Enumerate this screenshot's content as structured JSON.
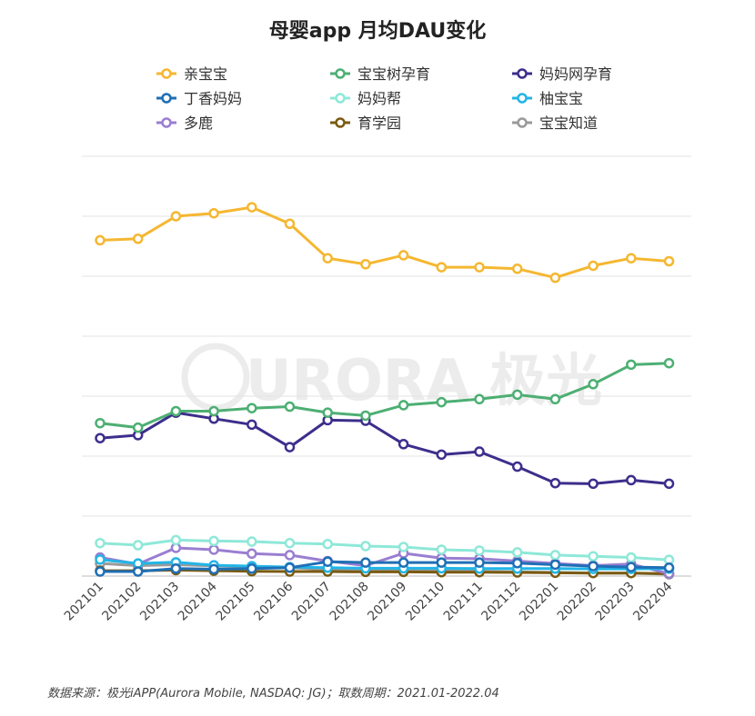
{
  "chart_data": {
    "type": "line",
    "title": "母婴app 月均DAU变化",
    "x": [
      "202101",
      "202102",
      "202103",
      "202104",
      "202105",
      "202106",
      "202107",
      "202108",
      "202109",
      "202110",
      "202111",
      "202112",
      "202201",
      "202202",
      "202203",
      "202204"
    ],
    "ylim": [
      0,
      1.4
    ],
    "grid": true,
    "legend": "top",
    "watermark": "URORA 极光",
    "series": [
      {
        "name": "亲宝宝",
        "color": "#F5B731",
        "values": [
          1.12,
          1.125,
          1.2,
          1.21,
          1.23,
          1.175,
          1.06,
          1.04,
          1.07,
          1.03,
          1.03,
          1.025,
          0.995,
          1.035,
          1.06,
          1.05
        ]
      },
      {
        "name": "宝宝树孕育",
        "color": "#4DAF73",
        "values": [
          0.51,
          0.495,
          0.55,
          0.55,
          0.56,
          0.565,
          0.545,
          0.535,
          0.57,
          0.58,
          0.59,
          0.605,
          0.59,
          0.64,
          0.705,
          0.71
        ]
      },
      {
        "name": "妈妈网孕育",
        "color": "#3C2E8C",
        "values": [
          0.46,
          0.47,
          0.545,
          0.525,
          0.505,
          0.43,
          0.52,
          0.518,
          0.44,
          0.405,
          0.415,
          0.365,
          0.31,
          0.308,
          0.32,
          0.308
        ]
      },
      {
        "name": "丁香妈妈",
        "color": "#1F6FB5",
        "values": [
          0.015,
          0.015,
          0.025,
          0.023,
          0.025,
          0.028,
          0.048,
          0.045,
          0.045,
          0.045,
          0.045,
          0.043,
          0.038,
          0.033,
          0.03,
          0.028
        ]
      },
      {
        "name": "妈妈帮",
        "color": "#8EE8D8",
        "values": [
          0.11,
          0.103,
          0.12,
          0.117,
          0.115,
          0.11,
          0.107,
          0.1,
          0.097,
          0.088,
          0.085,
          0.079,
          0.07,
          0.066,
          0.062,
          0.054
        ]
      },
      {
        "name": "柚宝宝",
        "color": "#22B5E6",
        "values": [
          0.055,
          0.042,
          0.046,
          0.036,
          0.033,
          0.03,
          0.028,
          0.026,
          0.026,
          0.026,
          0.025,
          0.025,
          0.025,
          0.024,
          0.024,
          0.025
        ]
      },
      {
        "name": "多鹿",
        "color": "#9A7ED1",
        "values": [
          0.062,
          0.04,
          0.094,
          0.088,
          0.075,
          0.07,
          0.05,
          0.035,
          0.076,
          0.06,
          0.058,
          0.05,
          0.042,
          0.035,
          0.04,
          0.008
        ]
      },
      {
        "name": "育学园",
        "color": "#7A5A12",
        "values": [
          0.018,
          0.018,
          0.02,
          0.018,
          0.016,
          0.015,
          0.015,
          0.014,
          0.014,
          0.013,
          0.013,
          0.012,
          0.011,
          0.01,
          0.01,
          0.008
        ]
      },
      {
        "name": "宝宝知道",
        "color": "#9A9A9A",
        "values": [
          0.042,
          0.035,
          0.038,
          0.034,
          0.03,
          0.028,
          0.022,
          0.02,
          0.02,
          0.018,
          0.016,
          0.014,
          0.012,
          0.01,
          0.01,
          0.006
        ]
      }
    ]
  },
  "source": "数据来源：极光iAPP(Aurora Mobile, NASDAQ: JG)；取数周期：2021.01-2022.04"
}
